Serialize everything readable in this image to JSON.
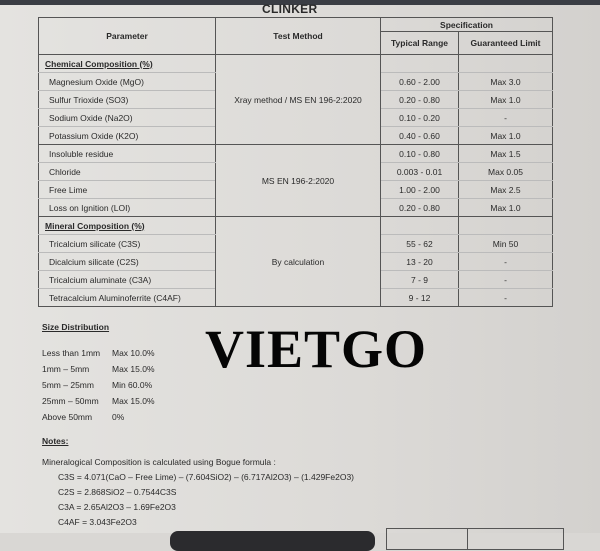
{
  "title": "CLINKER",
  "header": {
    "parameter": "Parameter",
    "test_method": "Test Method",
    "specification": "Specification",
    "typical_range": "Typical Range",
    "guaranteed_limit": "Guaranteed Limit"
  },
  "groups": [
    {
      "heading": "Chemical Composition (%)",
      "method": "Xray method /  MS EN 196-2:2020",
      "rows": [
        {
          "name": "Magnesium Oxide (MgO)",
          "range": "0.60 - 2.00",
          "limit": "Max 3.0"
        },
        {
          "name": "Sulfur Trioxide (SO3)",
          "range": "0.20 - 0.80",
          "limit": "Max 1.0"
        },
        {
          "name": "Sodium Oxide (Na2O)",
          "range": "0.10 - 0.20",
          "limit": "-"
        },
        {
          "name": "Potassium Oxide (K2O)",
          "range": "0.40 - 0.60",
          "limit": "Max 1.0"
        }
      ]
    },
    {
      "heading": "",
      "method": "MS EN 196-2:2020",
      "rows": [
        {
          "name": "Insoluble residue",
          "range": "0.10 - 0.80",
          "limit": "Max 1.5"
        },
        {
          "name": "Chloride",
          "range": "0.003 - 0.01",
          "limit": "Max 0.05"
        },
        {
          "name": "Free Lime",
          "range": "1.00 - 2.00",
          "limit": "Max 2.5"
        },
        {
          "name": "Loss on Ignition (LOI)",
          "range": "0.20 - 0.80",
          "limit": "Max 1.0"
        }
      ]
    },
    {
      "heading": "Mineral Composition (%)",
      "method": "By calculation",
      "rows": [
        {
          "name": "Tricalcium silicate (C3S)",
          "range": "55 - 62",
          "limit": "Min 50"
        },
        {
          "name": "Dicalcium silicate (C2S)",
          "range": "13 - 20",
          "limit": "-"
        },
        {
          "name": "Tricalcium aluminate (C3A)",
          "range": "7 - 9",
          "limit": "-"
        },
        {
          "name": "Tetracalcium Aluminoferrite (C4AF)",
          "range": "9 - 12",
          "limit": "-"
        }
      ]
    }
  ],
  "size_distribution": {
    "heading": "Size Distribution",
    "rows": [
      {
        "size": "Less than 1mm",
        "limit": "Max 10.0%"
      },
      {
        "size": "1mm – 5mm",
        "limit": "Max 15.0%"
      },
      {
        "size": "5mm – 25mm",
        "limit": "Min 60.0%"
      },
      {
        "size": "25mm – 50mm",
        "limit": "Max 15.0%"
      },
      {
        "size": "Above 50mm",
        "limit": "0%"
      }
    ]
  },
  "watermark": "VIETGO",
  "notes": {
    "heading": "Notes:",
    "intro": "Mineralogical Composition is calculated using Bogue formula :",
    "formulas": [
      "C3S = 4.071(CaO – Free Lime) – (7.604SiO2) – (6.717Al2O3) – (1.429Fe2O3)",
      "C2S = 2.868SiO2 – 0.7544C3S",
      "C3A = 2.65Al2O3 – 1.69Fe2O3",
      "C4AF = 3.043Fe2O3"
    ]
  }
}
